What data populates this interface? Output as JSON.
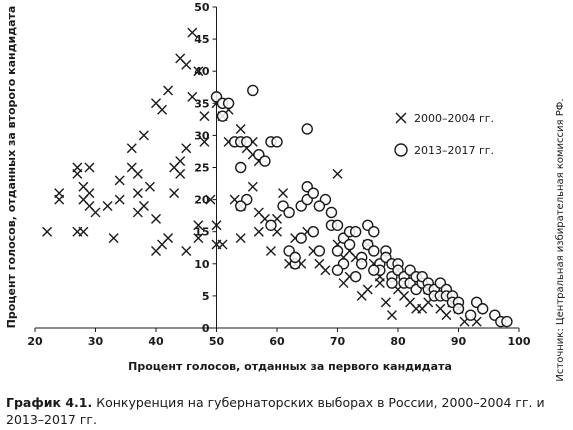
{
  "chart_data": {
    "type": "scatter",
    "title": "",
    "xlabel": "Процент голосов, отданных за первого кандидата",
    "ylabel": "Процент голосов, отданных за второго кандидата",
    "xlim": [
      20,
      100
    ],
    "ylim": [
      0,
      50
    ],
    "x_ticks": [
      "20",
      "30",
      "40",
      "50",
      "60",
      "70",
      "80",
      "90",
      "100"
    ],
    "y_ticks": [
      "0",
      "5",
      "10",
      "15",
      "20",
      "25",
      "30",
      "35",
      "40",
      "45",
      "50"
    ],
    "grid": false,
    "legend_position": "top-right",
    "series": [
      {
        "name": "2000–2004 гг.",
        "marker": "x",
        "points": [
          [
            22,
            15
          ],
          [
            24,
            20
          ],
          [
            24,
            21
          ],
          [
            27,
            24
          ],
          [
            27,
            25
          ],
          [
            28,
            22
          ],
          [
            28,
            20
          ],
          [
            29,
            25
          ],
          [
            29,
            21
          ],
          [
            29,
            19
          ],
          [
            30,
            18
          ],
          [
            28,
            15
          ],
          [
            27,
            15
          ],
          [
            32,
            19
          ],
          [
            33,
            14
          ],
          [
            34,
            20
          ],
          [
            34,
            23
          ],
          [
            36,
            25
          ],
          [
            36,
            28
          ],
          [
            37,
            24
          ],
          [
            37,
            21
          ],
          [
            38,
            30
          ],
          [
            37,
            18
          ],
          [
            38,
            19
          ],
          [
            39,
            22
          ],
          [
            40,
            35
          ],
          [
            41,
            34
          ],
          [
            42,
            37
          ],
          [
            40,
            17
          ],
          [
            40,
            12
          ],
          [
            41,
            13
          ],
          [
            42,
            14
          ],
          [
            43,
            25
          ],
          [
            43,
            21
          ],
          [
            44,
            26
          ],
          [
            44,
            24
          ],
          [
            45,
            28
          ],
          [
            44,
            42
          ],
          [
            45,
            41
          ],
          [
            46,
            46
          ],
          [
            47,
            40
          ],
          [
            46,
            36
          ],
          [
            47,
            16
          ],
          [
            47,
            14
          ],
          [
            45,
            12
          ],
          [
            48,
            33
          ],
          [
            48,
            29
          ],
          [
            49,
            20
          ],
          [
            50,
            16
          ],
          [
            50,
            13
          ],
          [
            51,
            13
          ],
          [
            50,
            35
          ],
          [
            51,
            33
          ],
          [
            52,
            34
          ],
          [
            53,
            20
          ],
          [
            54,
            19
          ],
          [
            54,
            14
          ],
          [
            55,
            28
          ],
          [
            56,
            29
          ],
          [
            56,
            27
          ],
          [
            57,
            26
          ],
          [
            56,
            22
          ],
          [
            57,
            18
          ],
          [
            58,
            17
          ],
          [
            57,
            15
          ],
          [
            59,
            12
          ],
          [
            60,
            15
          ],
          [
            61,
            21
          ],
          [
            62,
            10
          ],
          [
            63,
            14
          ],
          [
            63,
            10
          ],
          [
            64,
            10
          ],
          [
            66,
            12
          ],
          [
            67,
            10
          ],
          [
            68,
            9
          ],
          [
            70,
            13
          ],
          [
            71,
            11
          ],
          [
            71,
            7
          ],
          [
            72,
            8
          ],
          [
            73,
            11
          ],
          [
            74,
            5
          ],
          [
            75,
            6
          ],
          [
            76,
            10
          ],
          [
            77,
            8
          ],
          [
            78,
            4
          ],
          [
            79,
            2
          ],
          [
            80,
            6
          ],
          [
            81,
            5
          ],
          [
            82,
            4
          ],
          [
            83,
            3
          ],
          [
            84,
            3
          ],
          [
            85,
            4
          ],
          [
            86,
            5
          ],
          [
            87,
            3
          ],
          [
            88,
            2
          ],
          [
            89,
            4
          ],
          [
            90,
            3
          ],
          [
            91,
            1
          ],
          [
            93,
            1
          ],
          [
            70,
            24
          ],
          [
            60,
            17
          ],
          [
            65,
            15
          ],
          [
            72,
            12
          ],
          [
            75,
            13
          ],
          [
            77,
            7
          ],
          [
            80,
            9
          ],
          [
            85,
            6
          ],
          [
            52,
            29
          ],
          [
            54,
            31
          ]
        ]
      },
      {
        "name": "2013–2017 гг.",
        "marker": "o",
        "points": [
          [
            50,
            36
          ],
          [
            51,
            35
          ],
          [
            52,
            35
          ],
          [
            51,
            33
          ],
          [
            53,
            29
          ],
          [
            54,
            29
          ],
          [
            55,
            29
          ],
          [
            56,
            37
          ],
          [
            57,
            27
          ],
          [
            58,
            26
          ],
          [
            59,
            29
          ],
          [
            60,
            29
          ],
          [
            54,
            25
          ],
          [
            55,
            20
          ],
          [
            54,
            19
          ],
          [
            59,
            16
          ],
          [
            61,
            19
          ],
          [
            62,
            18
          ],
          [
            62,
            12
          ],
          [
            63,
            10
          ],
          [
            63,
            11
          ],
          [
            64,
            14
          ],
          [
            64,
            19
          ],
          [
            65,
            20
          ],
          [
            65,
            31
          ],
          [
            65,
            22
          ],
          [
            66,
            21
          ],
          [
            66,
            15
          ],
          [
            67,
            12
          ],
          [
            68,
            20
          ],
          [
            69,
            18
          ],
          [
            69,
            16
          ],
          [
            70,
            16
          ],
          [
            70,
            12
          ],
          [
            71,
            10
          ],
          [
            71,
            14
          ],
          [
            72,
            13
          ],
          [
            72,
            15
          ],
          [
            73,
            15
          ],
          [
            74,
            11
          ],
          [
            74,
            10
          ],
          [
            75,
            16
          ],
          [
            75,
            13
          ],
          [
            76,
            15
          ],
          [
            76,
            12
          ],
          [
            77,
            10
          ],
          [
            77,
            9
          ],
          [
            78,
            12
          ],
          [
            78,
            11
          ],
          [
            79,
            10
          ],
          [
            79,
            8
          ],
          [
            80,
            10
          ],
          [
            80,
            9
          ],
          [
            81,
            8
          ],
          [
            81,
            7
          ],
          [
            82,
            9
          ],
          [
            82,
            7
          ],
          [
            83,
            8
          ],
          [
            83,
            6
          ],
          [
            84,
            7
          ],
          [
            84,
            8
          ],
          [
            85,
            7
          ],
          [
            85,
            6
          ],
          [
            86,
            6
          ],
          [
            86,
            5
          ],
          [
            87,
            7
          ],
          [
            87,
            5
          ],
          [
            88,
            6
          ],
          [
            88,
            5
          ],
          [
            89,
            5
          ],
          [
            89,
            4
          ],
          [
            90,
            4
          ],
          [
            90,
            3
          ],
          [
            92,
            2
          ],
          [
            93,
            4
          ],
          [
            94,
            3
          ],
          [
            96,
            2
          ],
          [
            97,
            1
          ],
          [
            98,
            1
          ],
          [
            70,
            9
          ],
          [
            73,
            8
          ],
          [
            76,
            9
          ],
          [
            79,
            7
          ],
          [
            67,
            19
          ]
        ]
      }
    ],
    "source_note": "Источник: Центральная избирательная комиссия РФ."
  },
  "caption": {
    "label": "График 4.1.",
    "text": "Конкуренция на губернаторских выборах в России, 2000–2004 гг. и 2013–2017 гг."
  }
}
